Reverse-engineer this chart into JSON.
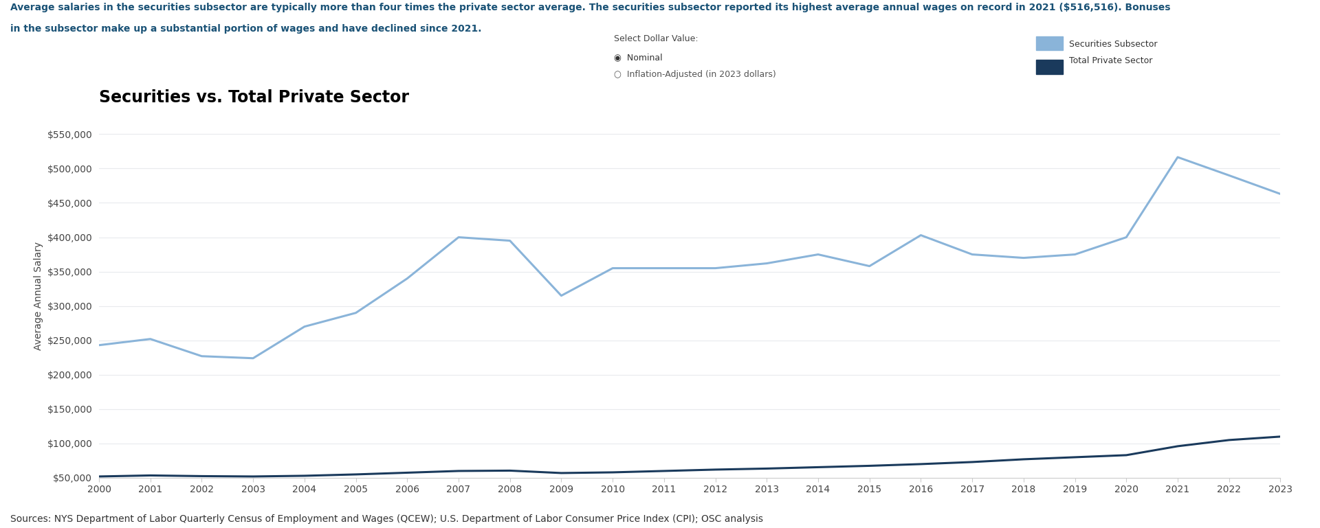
{
  "title": "Securities vs. Total Private Sector",
  "subtitle_line1": "Average salaries in the securities subsector are typically more than four times the private sector average. The securities subsector reported its highest average annual wages on record in 2021 ($516,516). Bonuses",
  "subtitle_line2": "in the subsector make up a substantial portion of wages and have declined since 2021.",
  "ylabel": "Average Annual Salary",
  "footer": "Sources: NYS Department of Labor Quarterly Census of Employment and Wages (QCEW); U.S. Department of Labor Consumer Price Index (CPI); OSC analysis",
  "legend_label1": "Securities Subsector",
  "legend_label2": "Total Private Sector",
  "radio_label_title": "Select Dollar Value:",
  "radio_label1": "Nominal",
  "radio_label2": "Inflation-Adjusted (in 2023 dollars)",
  "years": [
    2000,
    2001,
    2002,
    2003,
    2004,
    2005,
    2006,
    2007,
    2008,
    2009,
    2010,
    2011,
    2012,
    2013,
    2014,
    2015,
    2016,
    2017,
    2018,
    2019,
    2020,
    2021,
    2022,
    2023
  ],
  "securities": [
    243000,
    252000,
    227000,
    224000,
    270000,
    290000,
    340000,
    400000,
    395000,
    315000,
    355000,
    355000,
    355000,
    362000,
    375000,
    358000,
    403000,
    375000,
    370000,
    375000,
    400000,
    516516,
    490000,
    463000
  ],
  "private": [
    52000,
    53500,
    52500,
    52000,
    53000,
    55000,
    57500,
    60000,
    60500,
    57000,
    58000,
    60000,
    62000,
    63500,
    65500,
    67500,
    70000,
    73000,
    77000,
    80000,
    83000,
    96000,
    105000,
    110000
  ],
  "securities_color": "#8ab4d9",
  "private_color": "#1a3a5c",
  "background_color": "#ffffff",
  "grid_color": "#e8eaed",
  "ylim_min": 50000,
  "ylim_max": 580000,
  "yticks": [
    50000,
    100000,
    150000,
    200000,
    250000,
    300000,
    350000,
    400000,
    450000,
    500000,
    550000
  ],
  "title_fontsize": 17,
  "subtitle_fontsize": 10,
  "axis_label_fontsize": 10,
  "tick_fontsize": 10,
  "footer_fontsize": 10,
  "line_width": 2.2
}
